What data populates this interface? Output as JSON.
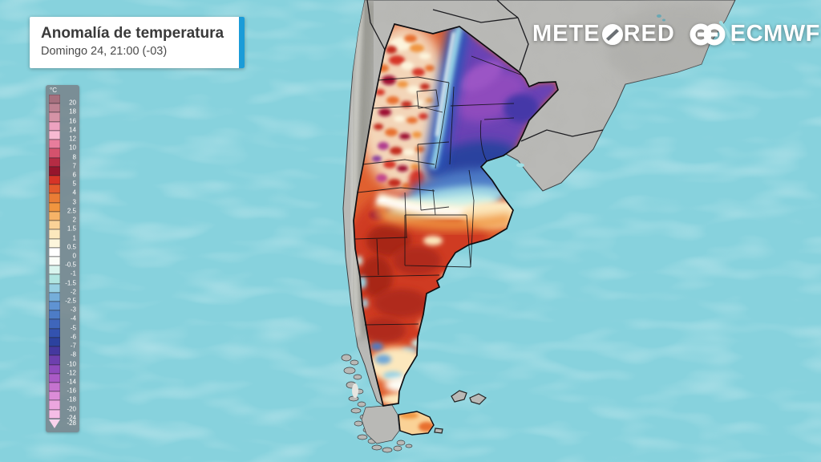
{
  "card": {
    "title": "Anomalía de temperatura",
    "subtitle": "Domingo 24, 21:00 (-03)"
  },
  "branding": {
    "meteored_pre": "METE",
    "meteored_post": "RED",
    "meteored_full": "METEORED",
    "ecmwf": "ECMWF"
  },
  "legend": {
    "unit": "°C",
    "cells": [
      {
        "label": "20",
        "color": "#a6707e"
      },
      {
        "label": "18",
        "color": "#bd8292"
      },
      {
        "label": "16",
        "color": "#d593a6"
      },
      {
        "label": "14",
        "color": "#eda2c0"
      },
      {
        "label": "12",
        "color": "#f7bad2"
      },
      {
        "label": "10",
        "color": "#e87d9c"
      },
      {
        "label": "8",
        "color": "#d4526d"
      },
      {
        "label": "7",
        "color": "#b52c44"
      },
      {
        "label": "6",
        "color": "#96152c"
      },
      {
        "label": "5",
        "color": "#d63427"
      },
      {
        "label": "4",
        "color": "#e35b2c"
      },
      {
        "label": "3",
        "color": "#ea7d35"
      },
      {
        "label": "2.5",
        "color": "#f0953f"
      },
      {
        "label": "2",
        "color": "#f6b367"
      },
      {
        "label": "1.5",
        "color": "#fad297"
      },
      {
        "label": "1",
        "color": "#fce8bd"
      },
      {
        "label": "0.5",
        "color": "#fdf6dc"
      },
      {
        "label": "0",
        "color": "#ffffff"
      },
      {
        "label": "-0.5",
        "color": "#fafdf8"
      },
      {
        "label": "-1",
        "color": "#d8f4ee"
      },
      {
        "label": "-1.5",
        "color": "#b0e5e1"
      },
      {
        "label": "-2",
        "color": "#97d0e3"
      },
      {
        "label": "-2.5",
        "color": "#75aeda"
      },
      {
        "label": "-3",
        "color": "#5f93d2"
      },
      {
        "label": "-4",
        "color": "#4d7cc6"
      },
      {
        "label": "-5",
        "color": "#3f66bb"
      },
      {
        "label": "-6",
        "color": "#3352af"
      },
      {
        "label": "-7",
        "color": "#2c429f"
      },
      {
        "label": "-8",
        "color": "#45389f"
      },
      {
        "label": "-10",
        "color": "#6d3fae"
      },
      {
        "label": "-12",
        "color": "#8f4bbd"
      },
      {
        "label": "-14",
        "color": "#aa5ac6"
      },
      {
        "label": "-16",
        "color": "#c573cf"
      },
      {
        "label": "-18",
        "color": "#db8cd8"
      },
      {
        "label": "-20",
        "color": "#eca6de"
      },
      {
        "label": "-24",
        "color": "#f5bde6"
      }
    ],
    "tip": {
      "label": "-28",
      "color": "#f9d2ec"
    }
  },
  "map": {
    "ocean_color": "#87d2dd",
    "land_color": "#b9b9b6",
    "country_border_color": "#121216",
    "accent_blue": "#1b9cd8",
    "warm_anomaly_color": "#d63427",
    "cold_anomaly_color": "#6a42b4"
  }
}
